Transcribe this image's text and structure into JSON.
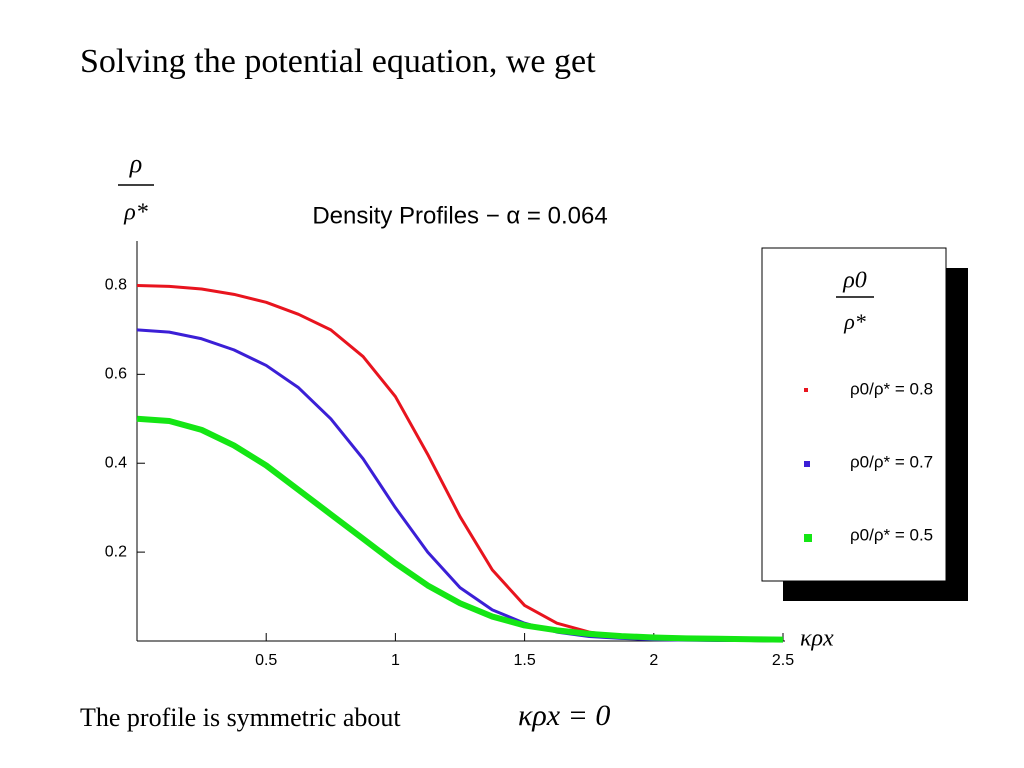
{
  "header": {
    "title": "Solving the potential equation, we get"
  },
  "chart_data": {
    "type": "line",
    "title": "Density Profiles − α = 0.064",
    "ylabel": {
      "numerator": "ρ",
      "denominator": "ρ*"
    },
    "xlabel": "κρx",
    "legend_title": {
      "numerator": "ρ0",
      "denominator": "ρ*"
    },
    "legend": "right",
    "x": [
      0,
      0.125,
      0.25,
      0.375,
      0.5,
      0.625,
      0.75,
      0.875,
      1,
      1.125,
      1.25,
      1.375,
      1.5,
      1.625,
      1.75,
      1.875,
      2,
      2.125,
      2.25,
      2.375,
      2.5
    ],
    "series": [
      {
        "name": "ρ0/ρ* = 0.8",
        "color": "#e8141e",
        "width": 3,
        "values": [
          0.8,
          0.798,
          0.792,
          0.78,
          0.762,
          0.735,
          0.7,
          0.64,
          0.55,
          0.42,
          0.28,
          0.16,
          0.08,
          0.04,
          0.02,
          0.01,
          0.005,
          0.003,
          0.002,
          0.001,
          0
        ]
      },
      {
        "name": "ρ0/ρ* = 0.7",
        "color": "#3b1fd6",
        "width": 3,
        "values": [
          0.7,
          0.695,
          0.68,
          0.655,
          0.62,
          0.57,
          0.5,
          0.41,
          0.3,
          0.2,
          0.12,
          0.07,
          0.04,
          0.02,
          0.01,
          0.006,
          0.003,
          0.002,
          0.001,
          0.001,
          0
        ]
      },
      {
        "name": "ρ0/ρ* = 0.5",
        "color": "#14e614",
        "width": 6,
        "values": [
          0.5,
          0.495,
          0.475,
          0.44,
          0.395,
          0.34,
          0.285,
          0.23,
          0.175,
          0.125,
          0.085,
          0.055,
          0.035,
          0.024,
          0.016,
          0.011,
          0.008,
          0.006,
          0.005,
          0.004,
          0.003
        ]
      }
    ],
    "xlim": [
      0,
      2.5
    ],
    "ylim": [
      0,
      0.9
    ],
    "xticks": [
      0.5,
      1,
      1.5,
      2,
      2.5
    ],
    "yticks": [
      0.2,
      0.4,
      0.6,
      0.8
    ]
  },
  "footer": {
    "text": "The profile is symmetric about",
    "math": "κρx = 0"
  }
}
